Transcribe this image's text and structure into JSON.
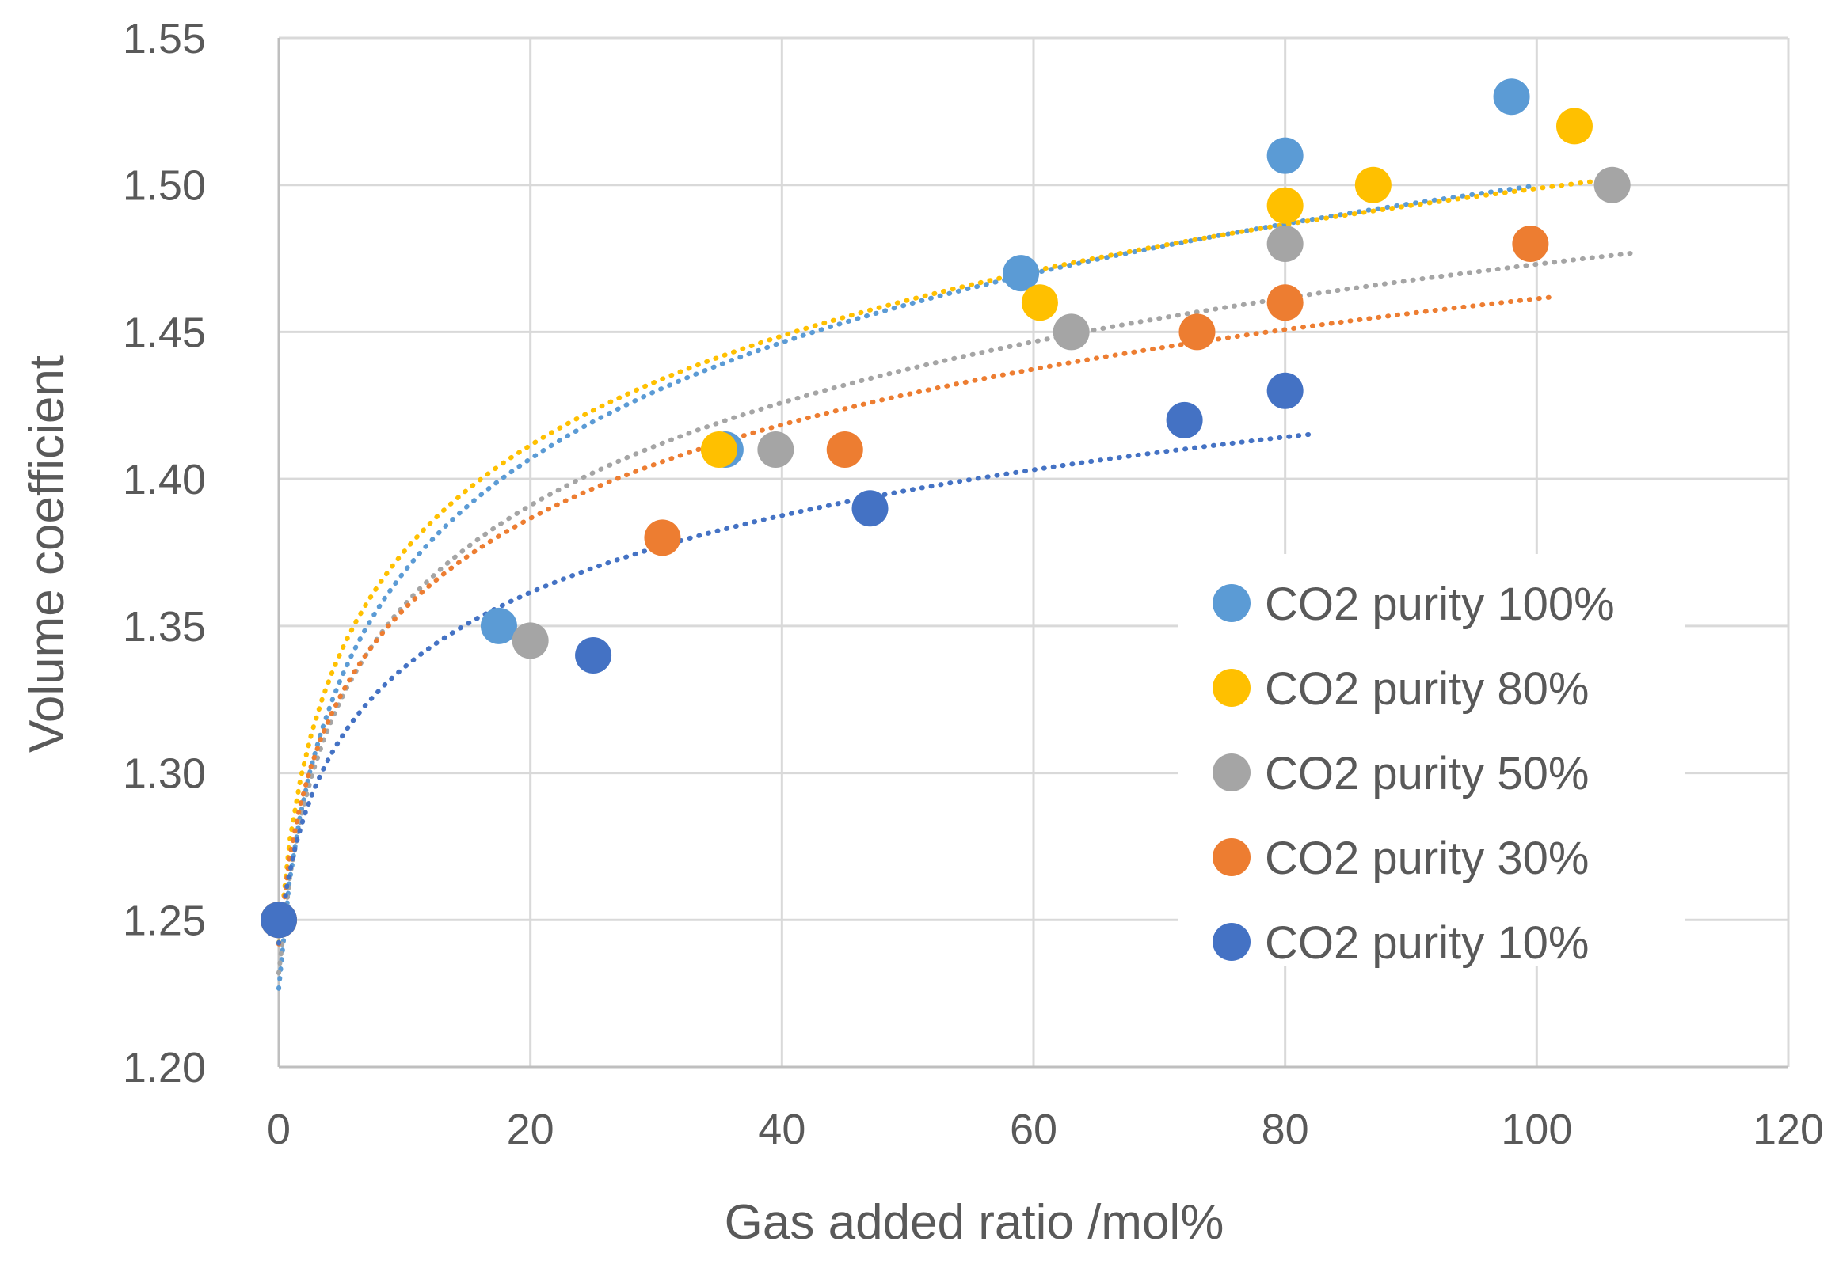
{
  "chart_data": {
    "type": "scatter",
    "title": "",
    "xlabel": "Gas added ratio /mol%",
    "ylabel": "Volume coefficient",
    "xlim": [
      0,
      120
    ],
    "ylim": [
      1.2,
      1.55
    ],
    "x_ticks": [
      0,
      20,
      40,
      60,
      80,
      100,
      120
    ],
    "y_ticks": [
      1.2,
      1.25,
      1.3,
      1.35,
      1.4,
      1.45,
      1.5,
      1.55
    ],
    "x_tick_labels": [
      "0",
      "20",
      "40",
      "60",
      "80",
      "100",
      "120"
    ],
    "y_tick_labels": [
      "1.20",
      "1.25",
      "1.30",
      "1.35",
      "1.40",
      "1.45",
      "1.50",
      "1.55"
    ],
    "grid": true,
    "legend_position": "right",
    "trendline": "dotted logarithmic fit per series",
    "series": [
      {
        "name": "CO2 purity 100%",
        "color": "#5B9BD5",
        "x": [
          0,
          17.5,
          35.5,
          59,
          80,
          98
        ],
        "y": [
          1.25,
          1.35,
          1.41,
          1.47,
          1.51,
          1.53
        ]
      },
      {
        "name": "CO2 purity 80%",
        "color": "#FFC000",
        "x": [
          0,
          35,
          60.5,
          80,
          87,
          103
        ],
        "y": [
          1.25,
          1.41,
          1.46,
          1.493,
          1.5,
          1.52
        ]
      },
      {
        "name": "CO2 purity 50%",
        "color": "#A5A5A5",
        "x": [
          0,
          20,
          39.5,
          63,
          80,
          106
        ],
        "y": [
          1.25,
          1.345,
          1.41,
          1.45,
          1.48,
          1.5
        ]
      },
      {
        "name": "CO2 purity 30%",
        "color": "#ED7D31",
        "x": [
          0,
          30.5,
          45,
          73,
          80,
          99.5
        ],
        "y": [
          1.25,
          1.38,
          1.41,
          1.45,
          1.46,
          1.48
        ]
      },
      {
        "name": "CO2 purity 10%",
        "color": "#4472C4",
        "x": [
          0,
          25,
          47,
          72,
          80
        ],
        "y": [
          1.25,
          1.34,
          1.39,
          1.42,
          1.43
        ]
      }
    ]
  }
}
